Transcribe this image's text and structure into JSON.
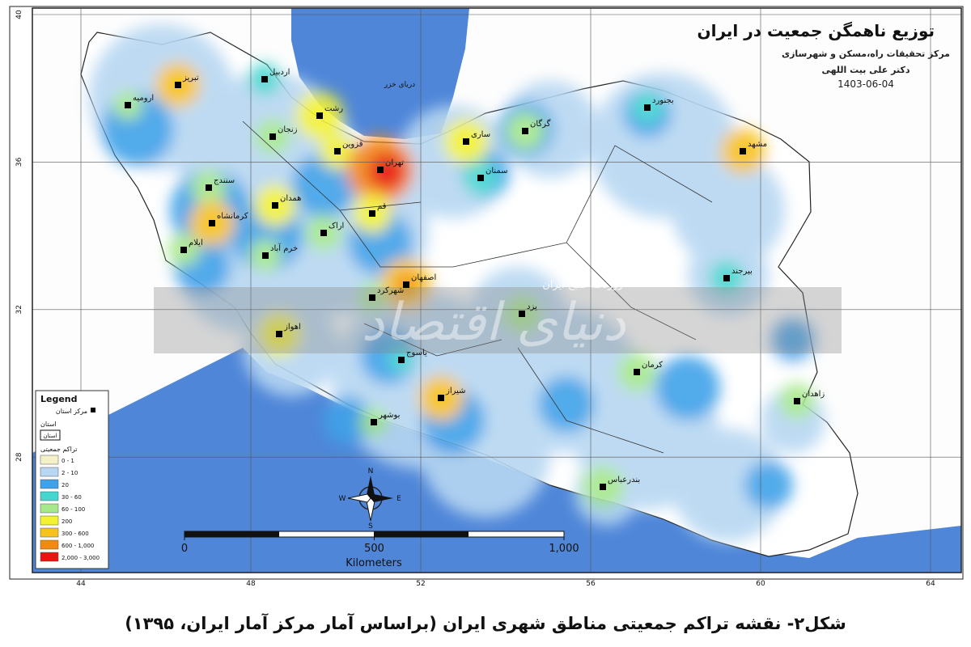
{
  "map": {
    "title": "توزیع ناهمگن جمعیت در ایران",
    "institute": "مرکز تحقیقات راه،مسکن و شهرسازی",
    "author": "دکتر علی بیت اللهی",
    "date": "1403-06-04",
    "sea_label": "دریای خزر",
    "lat_ticks": [
      40,
      36,
      32,
      28
    ],
    "lon_ticks": [
      44,
      48,
      52,
      56,
      60,
      64
    ],
    "cities": [
      "تبریز",
      "ارومیه",
      "اردبیل",
      "رشت",
      "زنجان",
      "قزوین",
      "تهران",
      "ساری",
      "گرگان",
      "سمنان",
      "بجنورد",
      "مشهد",
      "سنندج",
      "همدان",
      "کرمانشاه",
      "ایلام",
      "خرم آباد",
      "اراک",
      "قم",
      "اصفهان",
      "شهرکرد",
      "یزد",
      "بیرجند",
      "اهواز",
      "یاسوج",
      "شیراز",
      "بوشهر",
      "کرمان",
      "زاهدان",
      "بندرعباس"
    ],
    "legend": {
      "title": "Legend",
      "capital_label": "مرکز استان",
      "boundary_heading": "استان",
      "boundary_label": "استان",
      "density_heading": "تراکم جمعیتی",
      "items": [
        {
          "label": "0 - 1",
          "color": "#f4f0c8"
        },
        {
          "label": "2 - 10",
          "color": "#b7d7f2"
        },
        {
          "label": "20",
          "color": "#3fa2e8"
        },
        {
          "label": "30 - 60",
          "color": "#45d6d0"
        },
        {
          "label": "60 - 100",
          "color": "#a6e88a"
        },
        {
          "label": "200",
          "color": "#f2f230"
        },
        {
          "label": "300 - 600",
          "color": "#f7c21e"
        },
        {
          "label": "600 - 1,000",
          "color": "#f28a12"
        },
        {
          "label": "2,000 - 3,000",
          "color": "#e8140f"
        }
      ]
    },
    "scale": {
      "ticks": [
        0,
        500,
        {
          "value": 1000,
          "label": "1,000"
        }
      ],
      "unit": "Kilometers"
    },
    "compass": [
      "N",
      "E",
      "S",
      "W"
    ],
    "watermark": [
      "روزنامه صبح ایران",
      "دنیای اقتصاد"
    ]
  },
  "caption": "شکل۲- نقشه تراکم جمعیتی مناطق شهری ایران (براساس آمار مرکز آمار ایران، ۱۳۹۵)"
}
